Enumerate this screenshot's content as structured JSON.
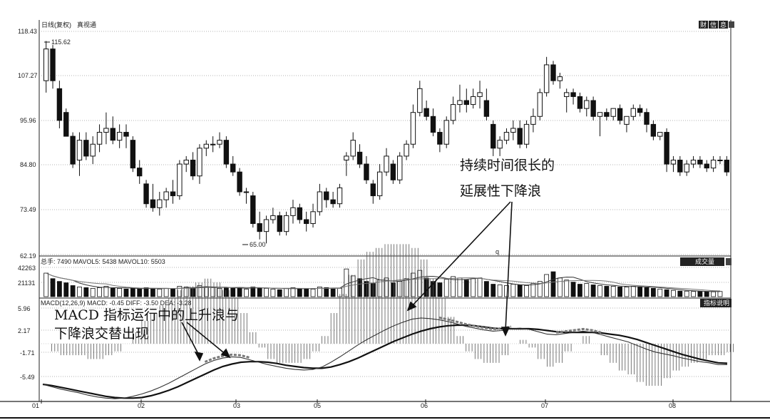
{
  "header": {
    "title": "日线(复权)",
    "stock": "真视通",
    "buttons": [
      "财",
      "信",
      "息"
    ]
  },
  "colors": {
    "up": "#ffffff",
    "down": "#111111",
    "grid": "#9a9a9a",
    "dif": "#333333",
    "dea": "#111111"
  },
  "price_axis": {
    "ticks": [
      "118.43",
      "107.27",
      "95.96",
      "84.80",
      "73.49",
      "62.19"
    ],
    "ylim": [
      62.19,
      118.43
    ]
  },
  "volume_axis": {
    "ticks": [
      "42263",
      "21131"
    ],
    "header": "总手: 7490 MAVOL5: 5438 MAVOL10: 5503",
    "button": "成交量"
  },
  "macd_axis": {
    "ticks": [
      "5.96",
      "2.17",
      "-1.71",
      "-5.49"
    ],
    "header": "MACD(12,26,9) MACD: -0.45 DIFF: -3.50 DEA: -3.28",
    "button": "指标说明"
  },
  "x_axis": {
    "labels": [
      "01",
      "02",
      "03",
      "05",
      "06",
      "07",
      "08"
    ]
  },
  "price_marks": {
    "high": "115.62",
    "low": "65.00",
    "q": "q"
  },
  "annotations": {
    "left_line1": "MACD 指标运行中的上升浪与",
    "left_line2": "下降浪交替出现",
    "right_line1": "持续时间很长的",
    "right_line2": "延展性下降浪"
  },
  "chart_data": {
    "type": "candlestick",
    "ylim": [
      62.19,
      118.43
    ],
    "volume_ylim": [
      0,
      42263
    ],
    "macd_ylim": [
      -9.3,
      5.96
    ],
    "candles": [
      {
        "o": 106,
        "h": 116,
        "l": 103,
        "c": 114
      },
      {
        "o": 114,
        "h": 115,
        "l": 104,
        "c": 106
      },
      {
        "o": 104,
        "h": 106,
        "l": 94,
        "c": 96
      },
      {
        "o": 98,
        "h": 99,
        "l": 92,
        "c": 92
      },
      {
        "o": 92,
        "h": 93,
        "l": 84,
        "c": 85
      },
      {
        "o": 86,
        "h": 93,
        "l": 82,
        "c": 91
      },
      {
        "o": 91,
        "h": 93,
        "l": 86,
        "c": 87
      },
      {
        "o": 87,
        "h": 92,
        "l": 85,
        "c": 90
      },
      {
        "o": 90,
        "h": 95,
        "l": 88,
        "c": 93
      },
      {
        "o": 93,
        "h": 98,
        "l": 90,
        "c": 94
      },
      {
        "o": 94,
        "h": 97,
        "l": 90,
        "c": 91
      },
      {
        "o": 91,
        "h": 95,
        "l": 89,
        "c": 93
      },
      {
        "o": 93,
        "h": 95,
        "l": 89,
        "c": 92
      },
      {
        "o": 91,
        "h": 92,
        "l": 83,
        "c": 84
      },
      {
        "o": 84,
        "h": 86,
        "l": 80,
        "c": 82
      },
      {
        "o": 80,
        "h": 81,
        "l": 74,
        "c": 75
      },
      {
        "o": 76,
        "h": 80,
        "l": 73,
        "c": 74
      },
      {
        "o": 74,
        "h": 78,
        "l": 72,
        "c": 76
      },
      {
        "o": 76,
        "h": 79,
        "l": 74,
        "c": 78
      },
      {
        "o": 78,
        "h": 81,
        "l": 75,
        "c": 77
      },
      {
        "o": 77,
        "h": 86,
        "l": 76,
        "c": 85
      },
      {
        "o": 85,
        "h": 87,
        "l": 83,
        "c": 86
      },
      {
        "o": 86,
        "h": 88,
        "l": 81,
        "c": 82
      },
      {
        "o": 82,
        "h": 90,
        "l": 80,
        "c": 89
      },
      {
        "o": 89,
        "h": 91,
        "l": 87,
        "c": 90
      },
      {
        "o": 90,
        "h": 92,
        "l": 88,
        "c": 90
      },
      {
        "o": 90,
        "h": 93,
        "l": 89,
        "c": 91
      },
      {
        "o": 91,
        "h": 92,
        "l": 84,
        "c": 85
      },
      {
        "o": 85,
        "h": 87,
        "l": 82,
        "c": 83
      },
      {
        "o": 83,
        "h": 84,
        "l": 77,
        "c": 78
      },
      {
        "o": 78,
        "h": 79,
        "l": 75,
        "c": 78
      },
      {
        "o": 77,
        "h": 78,
        "l": 69,
        "c": 70
      },
      {
        "o": 70,
        "h": 73,
        "l": 66,
        "c": 68
      },
      {
        "o": 68,
        "h": 72,
        "l": 65,
        "c": 71
      },
      {
        "o": 71,
        "h": 74,
        "l": 70,
        "c": 72
      },
      {
        "o": 72,
        "h": 73,
        "l": 67,
        "c": 68
      },
      {
        "o": 68,
        "h": 73,
        "l": 67,
        "c": 72
      },
      {
        "o": 72,
        "h": 76,
        "l": 70,
        "c": 74
      },
      {
        "o": 74,
        "h": 75,
        "l": 70,
        "c": 71
      },
      {
        "o": 71,
        "h": 73,
        "l": 68,
        "c": 70
      },
      {
        "o": 70,
        "h": 75,
        "l": 69,
        "c": 73
      },
      {
        "o": 73,
        "h": 80,
        "l": 72,
        "c": 78
      },
      {
        "o": 78,
        "h": 79,
        "l": 74,
        "c": 76
      },
      {
        "o": 76,
        "h": 78,
        "l": 74,
        "c": 75
      },
      {
        "o": 75,
        "h": 80,
        "l": 74,
        "c": 79
      },
      {
        "o": 86,
        "h": 88,
        "l": 82,
        "c": 87
      },
      {
        "o": 87,
        "h": 93,
        "l": 86,
        "c": 91
      },
      {
        "o": 88,
        "h": 90,
        "l": 84,
        "c": 85
      },
      {
        "o": 85,
        "h": 87,
        "l": 80,
        "c": 81
      },
      {
        "o": 80,
        "h": 81,
        "l": 75,
        "c": 77
      },
      {
        "o": 77,
        "h": 85,
        "l": 76,
        "c": 83
      },
      {
        "o": 83,
        "h": 89,
        "l": 82,
        "c": 87
      },
      {
        "o": 85,
        "h": 86,
        "l": 80,
        "c": 81
      },
      {
        "o": 81,
        "h": 88,
        "l": 80,
        "c": 87
      },
      {
        "o": 87,
        "h": 91,
        "l": 86,
        "c": 90
      },
      {
        "o": 90,
        "h": 100,
        "l": 89,
        "c": 98
      },
      {
        "o": 98,
        "h": 106,
        "l": 97,
        "c": 104
      },
      {
        "o": 99,
        "h": 101,
        "l": 96,
        "c": 97
      },
      {
        "o": 97,
        "h": 99,
        "l": 92,
        "c": 93
      },
      {
        "o": 93,
        "h": 94,
        "l": 88,
        "c": 90
      },
      {
        "o": 90,
        "h": 97,
        "l": 89,
        "c": 96
      },
      {
        "o": 96,
        "h": 102,
        "l": 95,
        "c": 100
      },
      {
        "o": 100,
        "h": 105,
        "l": 98,
        "c": 101
      },
      {
        "o": 101,
        "h": 104,
        "l": 98,
        "c": 100
      },
      {
        "o": 100,
        "h": 104,
        "l": 99,
        "c": 102
      },
      {
        "o": 102,
        "h": 106,
        "l": 99,
        "c": 103
      },
      {
        "o": 101,
        "h": 104,
        "l": 96,
        "c": 97
      },
      {
        "o": 95,
        "h": 96,
        "l": 87,
        "c": 89
      },
      {
        "o": 89,
        "h": 92,
        "l": 87,
        "c": 91
      },
      {
        "o": 91,
        "h": 94,
        "l": 90,
        "c": 93
      },
      {
        "o": 93,
        "h": 96,
        "l": 91,
        "c": 94
      },
      {
        "o": 94,
        "h": 96,
        "l": 89,
        "c": 90
      },
      {
        "o": 90,
        "h": 96,
        "l": 89,
        "c": 95
      },
      {
        "o": 95,
        "h": 99,
        "l": 93,
        "c": 97
      },
      {
        "o": 97,
        "h": 104,
        "l": 96,
        "c": 103
      },
      {
        "o": 103,
        "h": 112,
        "l": 102,
        "c": 110
      },
      {
        "o": 110,
        "h": 111,
        "l": 105,
        "c": 106
      },
      {
        "o": 106,
        "h": 108,
        "l": 104,
        "c": 107
      },
      {
        "o": 102,
        "h": 104,
        "l": 98,
        "c": 103
      },
      {
        "o": 103,
        "h": 104,
        "l": 100,
        "c": 102
      },
      {
        "o": 102,
        "h": 103,
        "l": 98,
        "c": 99
      },
      {
        "o": 99,
        "h": 102,
        "l": 97,
        "c": 101
      },
      {
        "o": 101,
        "h": 102,
        "l": 96,
        "c": 97
      },
      {
        "o": 97,
        "h": 98,
        "l": 92,
        "c": 98
      },
      {
        "o": 98,
        "h": 99,
        "l": 96,
        "c": 97
      },
      {
        "o": 97,
        "h": 99,
        "l": 96,
        "c": 99
      },
      {
        "o": 99,
        "h": 100,
        "l": 95,
        "c": 96
      },
      {
        "o": 95,
        "h": 97,
        "l": 93,
        "c": 97
      },
      {
        "o": 97,
        "h": 100,
        "l": 96,
        "c": 99
      },
      {
        "o": 99,
        "h": 100,
        "l": 97,
        "c": 98
      },
      {
        "o": 98,
        "h": 99,
        "l": 93,
        "c": 95
      },
      {
        "o": 95,
        "h": 96,
        "l": 91,
        "c": 92
      },
      {
        "o": 92,
        "h": 93,
        "l": 91,
        "c": 93
      },
      {
        "o": 93,
        "h": 94,
        "l": 83,
        "c": 85
      },
      {
        "o": 85,
        "h": 87,
        "l": 83,
        "c": 86
      },
      {
        "o": 86,
        "h": 87,
        "l": 82,
        "c": 83
      },
      {
        "o": 83,
        "h": 86,
        "l": 82,
        "c": 85
      },
      {
        "o": 85,
        "h": 87,
        "l": 84,
        "c": 86
      },
      {
        "o": 86,
        "h": 87,
        "l": 84,
        "c": 85
      },
      {
        "o": 85,
        "h": 86,
        "l": 83,
        "c": 84
      },
      {
        "o": 84,
        "h": 87,
        "l": 83,
        "c": 86
      },
      {
        "o": 86,
        "h": 87,
        "l": 85,
        "c": 86
      },
      {
        "o": 86,
        "h": 87,
        "l": 82,
        "c": 83
      }
    ],
    "volume": [
      34000,
      26000,
      22000,
      20000,
      16000,
      14000,
      13000,
      12000,
      13000,
      15000,
      12000,
      12000,
      11000,
      12000,
      11000,
      13000,
      12000,
      11000,
      12000,
      11000,
      15000,
      14000,
      13000,
      16000,
      14000,
      13000,
      12000,
      13000,
      12000,
      13000,
      11000,
      14000,
      13000,
      12000,
      11000,
      10000,
      12000,
      13000,
      11000,
      12000,
      11000,
      14000,
      13000,
      12000,
      12000,
      40000,
      30000,
      26000,
      22000,
      19000,
      24000,
      27000,
      20000,
      22000,
      26000,
      34000,
      38000,
      27000,
      22000,
      20000,
      25000,
      29000,
      27000,
      24000,
      26000,
      27000,
      22000,
      18000,
      17000,
      16000,
      18000,
      17000,
      16000,
      19000,
      22000,
      32000,
      36000,
      27000,
      24000,
      21000,
      18000,
      19000,
      17000,
      16000,
      15000,
      15000,
      14000,
      14000,
      15000,
      14000,
      13000,
      12000,
      11000,
      10000,
      9000,
      8000,
      8000,
      7500,
      7500,
      7000,
      7000,
      7490
    ],
    "dif": [
      -6.8,
      -7.2,
      -7.6,
      -7.9,
      -8.2,
      -8.6,
      -8.9,
      -9.1,
      -9.2,
      -9.1,
      -8.8,
      -8.4,
      -7.9,
      -7.3,
      -6.6,
      -5.8,
      -5.0,
      -4.2,
      -3.4,
      -2.8,
      -2.4,
      -2.2,
      -2.3,
      -2.7,
      -3.1,
      -3.5,
      -3.8,
      -4.1,
      -4.3,
      -4.4,
      -4.3,
      -3.9,
      -3.1,
      -2.2,
      -1.2,
      -0.2,
      0.7,
      1.5,
      2.3,
      3.0,
      3.6,
      4.1,
      4.3,
      4.2,
      4.0,
      3.7,
      3.3,
      2.9,
      2.6,
      2.3,
      2.1,
      2.2,
      2.5,
      2.6,
      2.4,
      2.0,
      1.6,
      1.5,
      1.7,
      1.9,
      2.1,
      1.9,
      1.5,
      1.1,
      0.7,
      0.3,
      -0.3,
      -0.9,
      -1.4,
      -1.7,
      -2.0,
      -2.4,
      -2.7,
      -3.0,
      -3.2,
      -3.5,
      -3.5
    ],
    "dea": [
      -6.8,
      -7.0,
      -7.3,
      -7.6,
      -7.9,
      -8.2,
      -8.5,
      -8.8,
      -9.0,
      -9.1,
      -9.1,
      -9.0,
      -8.7,
      -8.3,
      -7.8,
      -7.2,
      -6.5,
      -5.8,
      -5.1,
      -4.4,
      -3.8,
      -3.4,
      -3.1,
      -3.0,
      -3.0,
      -3.1,
      -3.3,
      -3.6,
      -3.8,
      -4.0,
      -4.1,
      -4.1,
      -3.9,
      -3.5,
      -3.0,
      -2.4,
      -1.7,
      -1.0,
      -0.3,
      0.4,
      1.0,
      1.6,
      2.1,
      2.5,
      2.8,
      3.0,
      3.1,
      3.1,
      3.0,
      2.8,
      2.6,
      2.5,
      2.5,
      2.5,
      2.5,
      2.4,
      2.2,
      2.0,
      1.9,
      1.9,
      1.9,
      1.9,
      1.8,
      1.6,
      1.4,
      1.1,
      0.7,
      0.2,
      -0.3,
      -0.8,
      -1.3,
      -1.8,
      -2.2,
      -2.6,
      -2.9,
      -3.2,
      -3.28
    ]
  }
}
